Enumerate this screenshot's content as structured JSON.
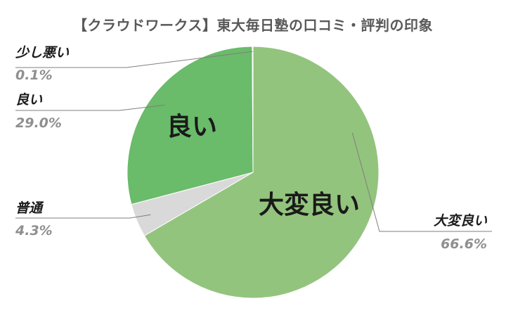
{
  "chart_data": {
    "type": "pie",
    "title": "【クラウドワークス】東大毎日塾の口コミ・評判の印象",
    "slices": [
      {
        "name": "大変良い",
        "value": 66.6,
        "percent_label": "66.6%",
        "color": "#93c47d"
      },
      {
        "name": "普通",
        "value": 4.3,
        "percent_label": "4.3%",
        "color": "#d9d9d9"
      },
      {
        "name": "良い",
        "value": 29.0,
        "percent_label": "29.0%",
        "color": "#6abb6a"
      },
      {
        "name": "少し悪い",
        "value": 0.1,
        "percent_label": "0.1%",
        "color": "#f0b429"
      }
    ],
    "inner_labels": [
      "良い",
      "大変良い"
    ],
    "start": "12 o'clock",
    "direction": "clockwise",
    "legend": "none"
  }
}
